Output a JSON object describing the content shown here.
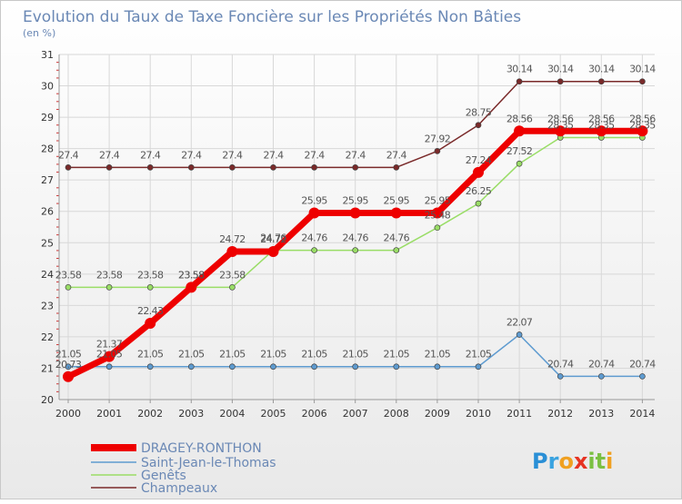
{
  "chart_data": {
    "type": "line",
    "title": "Evolution du Taux de Taxe Foncière sur les Propriétés Non Bâties",
    "unit_label": "(en %)",
    "xlabel": "",
    "ylabel": "",
    "ylim": [
      20,
      31
    ],
    "y_ticks": [
      "20",
      "21",
      "22",
      "23",
      "24",
      "25",
      "26",
      "27",
      "28",
      "29",
      "30",
      "31"
    ],
    "grid": true,
    "legend_position": "bottom-left",
    "categories": [
      "2000",
      "2001",
      "2002",
      "2003",
      "2004",
      "2005",
      "2006",
      "2007",
      "2008",
      "2009",
      "2010",
      "2011",
      "2012",
      "2013",
      "2014"
    ],
    "series": [
      {
        "name": "Champeaux",
        "color": "#7a2a2a",
        "values": [
          27.4,
          27.4,
          27.4,
          27.4,
          27.4,
          27.4,
          27.4,
          27.4,
          27.4,
          27.92,
          28.75,
          30.14,
          30.14,
          30.14,
          30.14
        ],
        "labels": [
          "27.4",
          "27.4",
          "27.4",
          "27.4",
          "27.4",
          "27.4",
          "27.4",
          "27.4",
          "27.4",
          "27.92",
          "28.75",
          "30.14",
          "30.14",
          "30.14",
          "30.14"
        ]
      },
      {
        "name": "Genêts",
        "color": "#99dd66",
        "values": [
          23.58,
          23.58,
          23.58,
          23.58,
          23.58,
          24.76,
          24.76,
          24.76,
          24.76,
          25.48,
          26.25,
          27.52,
          28.35,
          28.35,
          28.35
        ],
        "labels": [
          "23.58",
          "23.58",
          "23.58",
          "23.58",
          "23.58",
          "24.76",
          "24.76",
          "24.76",
          "24.76",
          "25.48",
          "26.25",
          "27.52",
          "28.35",
          "28.35",
          "28.35"
        ]
      },
      {
        "name": "Saint-Jean-le-Thomas",
        "color": "#5e9bd0",
        "values": [
          21.05,
          21.05,
          21.05,
          21.05,
          21.05,
          21.05,
          21.05,
          21.05,
          21.05,
          21.05,
          21.05,
          22.07,
          20.74,
          20.74,
          20.74
        ],
        "labels": [
          "21.05",
          "21.05",
          "21.05",
          "21.05",
          "21.05",
          "21.05",
          "21.05",
          "21.05",
          "21.05",
          "21.05",
          "21.05",
          "22.07",
          "20.74",
          "20.74",
          "20.74"
        ]
      },
      {
        "name": "DRAGEY-RONTHON",
        "color": "#ee0000",
        "values": [
          20.73,
          21.37,
          22.43,
          23.58,
          24.72,
          24.72,
          25.95,
          25.95,
          25.95,
          25.95,
          27.24,
          28.56,
          28.56,
          28.56,
          28.56
        ],
        "labels": [
          "20.73",
          "21.37",
          "22.43",
          "23.58",
          "24.72",
          "24.72",
          "25.95",
          "25.95",
          "25.95",
          "25.95",
          "27.24",
          "28.56",
          "28.56",
          "28.56",
          "28.56"
        ]
      }
    ],
    "legend": [
      "DRAGEY-RONTHON",
      "Saint-Jean-le-Thomas",
      "Genêts",
      "Champeaux"
    ]
  },
  "logo": {
    "text": "Proxiti",
    "letters": [
      "P",
      "r",
      "o",
      "x",
      "i",
      "t",
      "i"
    ],
    "colors": [
      "#2a8fd6",
      "#3aa3e0",
      "#f0a020",
      "#e63322",
      "#7bc043",
      "#7bc043",
      "#f0a020"
    ]
  }
}
